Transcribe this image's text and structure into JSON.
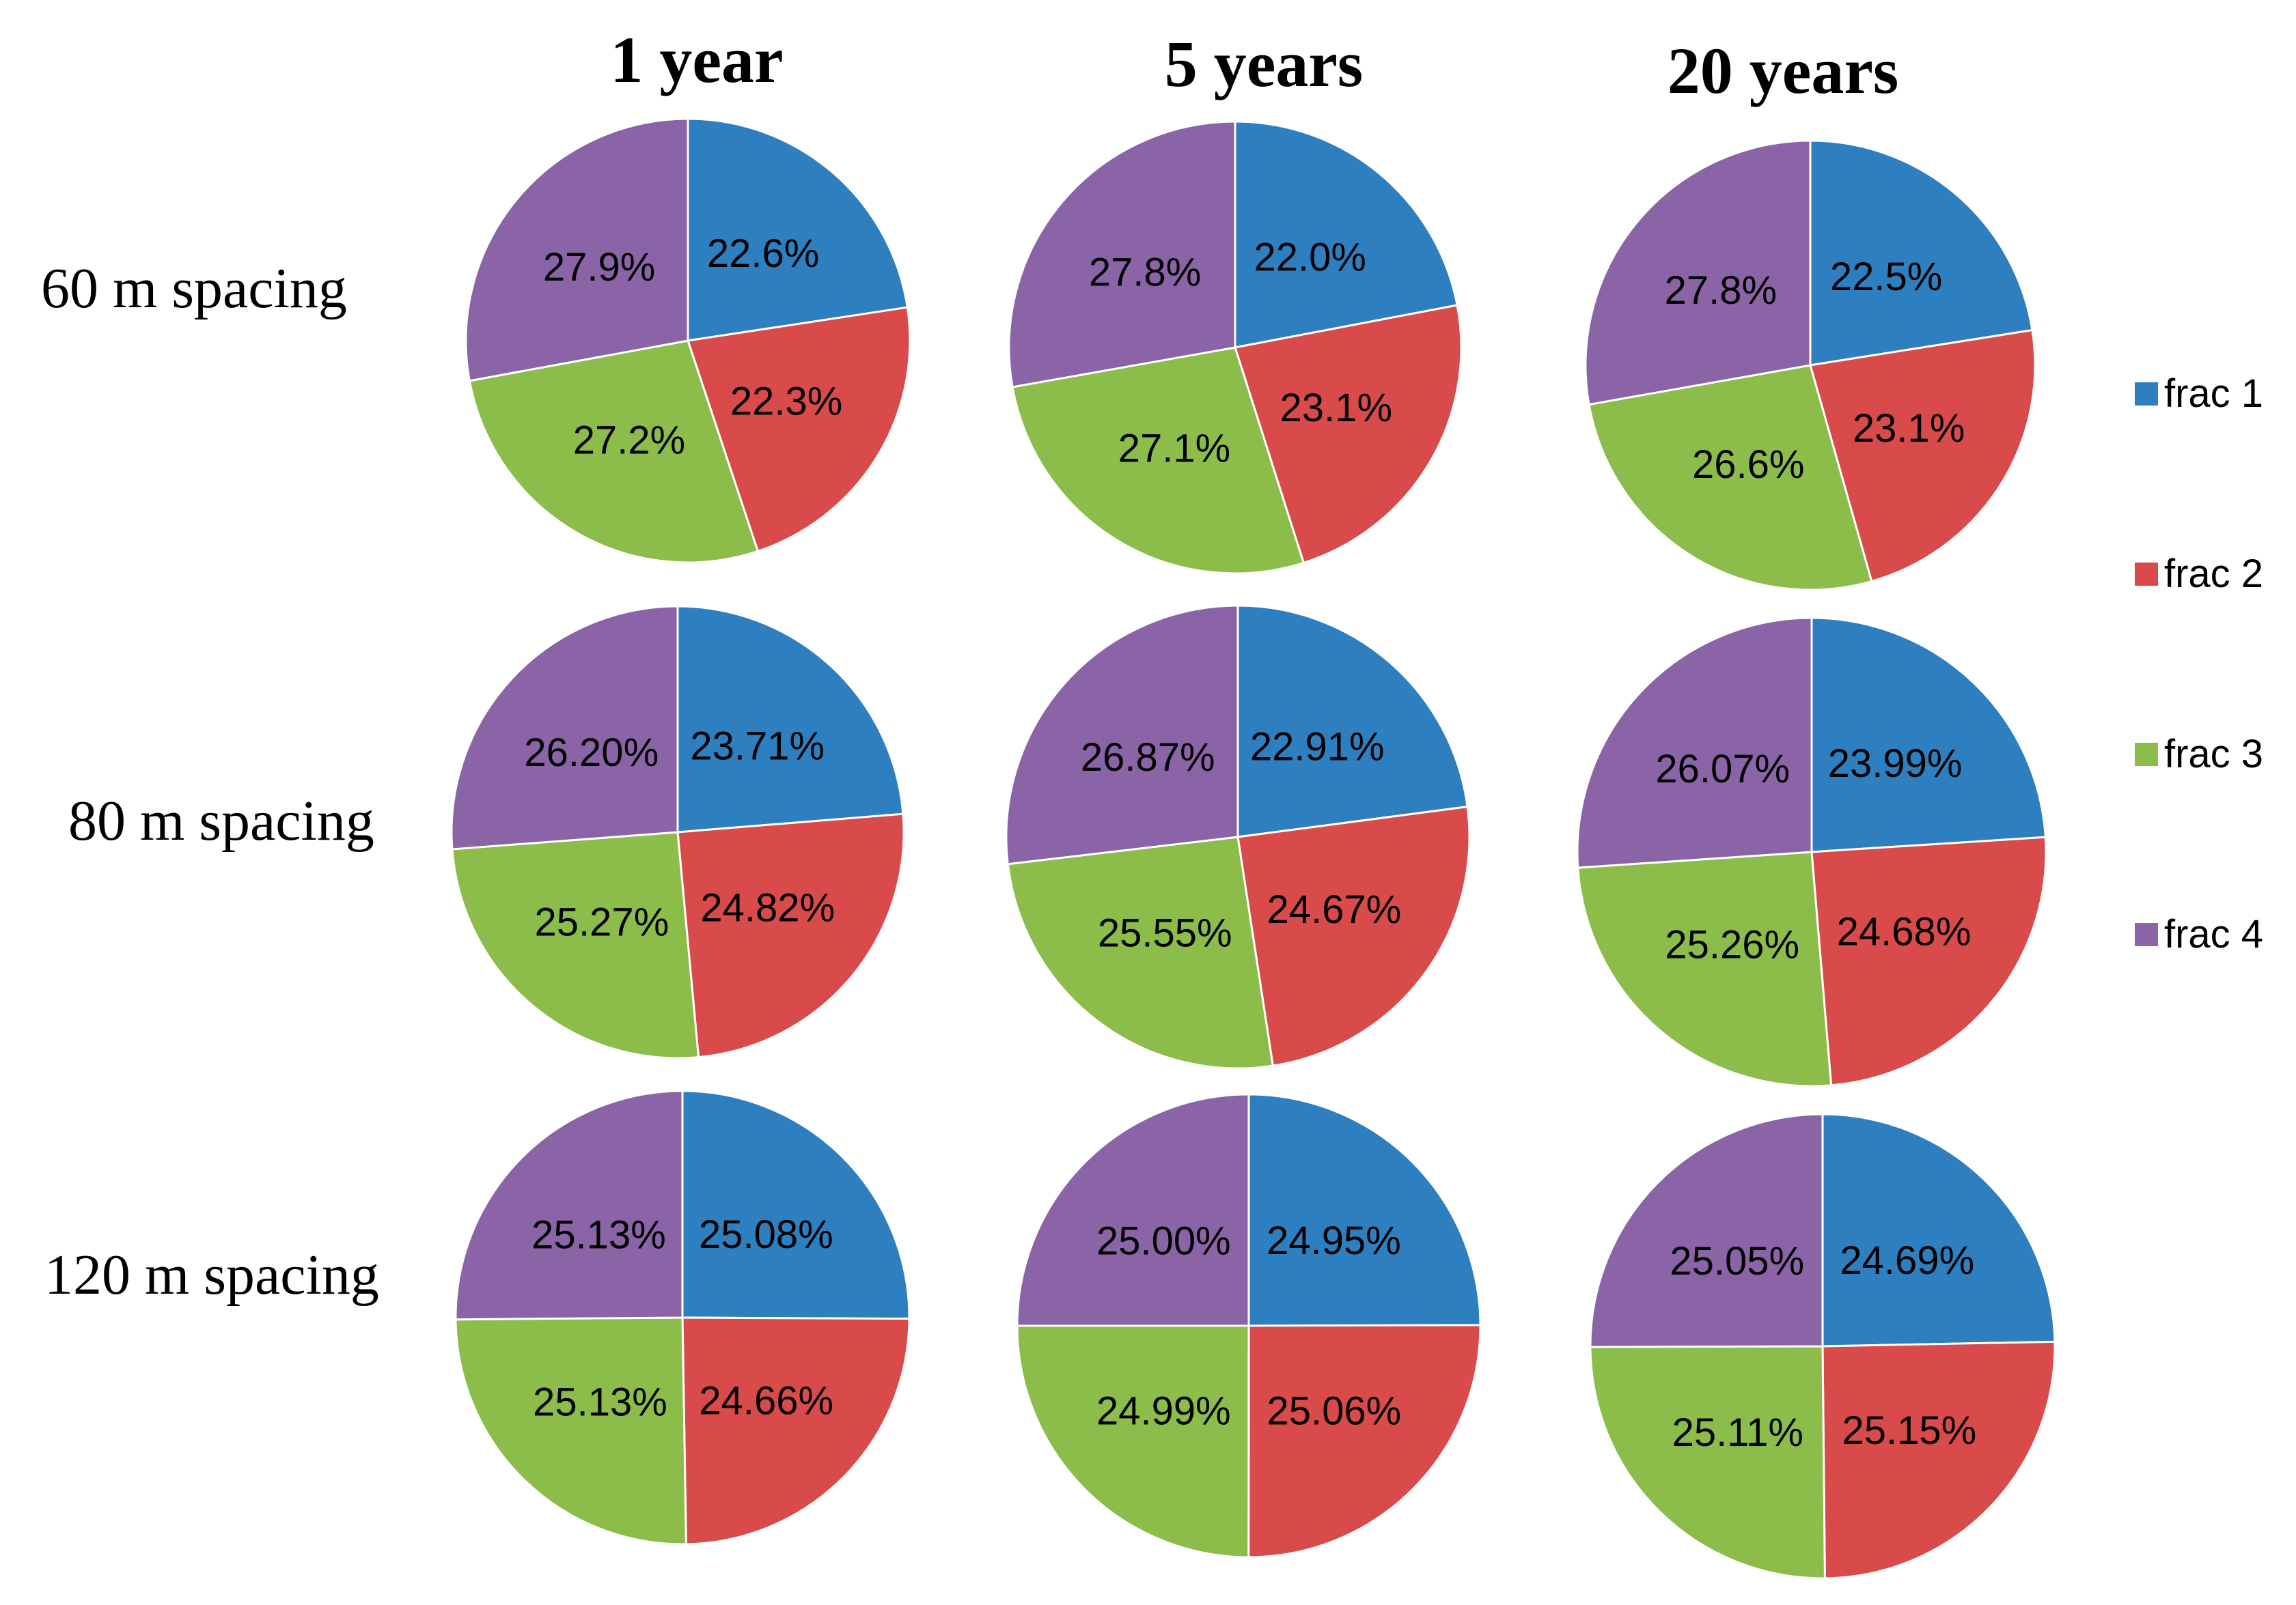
{
  "chart_data": {
    "type": "pie",
    "column_titles": [
      "1 year",
      "5 years",
      "20 years"
    ],
    "row_titles": [
      "60 m spacing",
      "80 m spacing",
      "120 m spacing"
    ],
    "legend": [
      "frac 1",
      "frac 2",
      "frac 3",
      "frac 4"
    ],
    "colors": [
      "#2e7fc0",
      "#d94a4a",
      "#8cbd4b",
      "#8a64a6"
    ],
    "pies": [
      [
        {
          "values": [
            22.6,
            22.3,
            27.2,
            27.9
          ],
          "labels": [
            "22.6%",
            "22.3%",
            "27.2%",
            "27.9%"
          ]
        },
        {
          "values": [
            22.0,
            23.1,
            27.1,
            27.8
          ],
          "labels": [
            "22.0%",
            "23.1%",
            "27.1%",
            "27.8%"
          ]
        },
        {
          "values": [
            22.5,
            23.1,
            26.6,
            27.8
          ],
          "labels": [
            "22.5%",
            "23.1%",
            "26.6%",
            "27.8%"
          ]
        }
      ],
      [
        {
          "values": [
            23.71,
            24.82,
            25.27,
            26.2
          ],
          "labels": [
            "23.71%",
            "24.82%",
            "25.27%",
            "26.20%"
          ]
        },
        {
          "values": [
            22.91,
            24.67,
            25.55,
            26.87
          ],
          "labels": [
            "22.91%",
            "24.67%",
            "25.55%",
            "26.87%"
          ]
        },
        {
          "values": [
            23.99,
            24.68,
            25.26,
            26.07
          ],
          "labels": [
            "23.99%",
            "24.68%",
            "25.26%",
            "26.07%"
          ]
        }
      ],
      [
        {
          "values": [
            25.08,
            24.66,
            25.13,
            25.13
          ],
          "labels": [
            "25.08%",
            "24.66%",
            "25.13%",
            "25.13%"
          ]
        },
        {
          "values": [
            24.95,
            25.06,
            24.99,
            25.0
          ],
          "labels": [
            "24.95%",
            "25.06%",
            "24.99%",
            "25.00%"
          ]
        },
        {
          "values": [
            24.69,
            25.15,
            25.11,
            25.05
          ],
          "labels": [
            "24.69%",
            "25.15%",
            "25.11%",
            "25.05%"
          ]
        }
      ]
    ]
  }
}
